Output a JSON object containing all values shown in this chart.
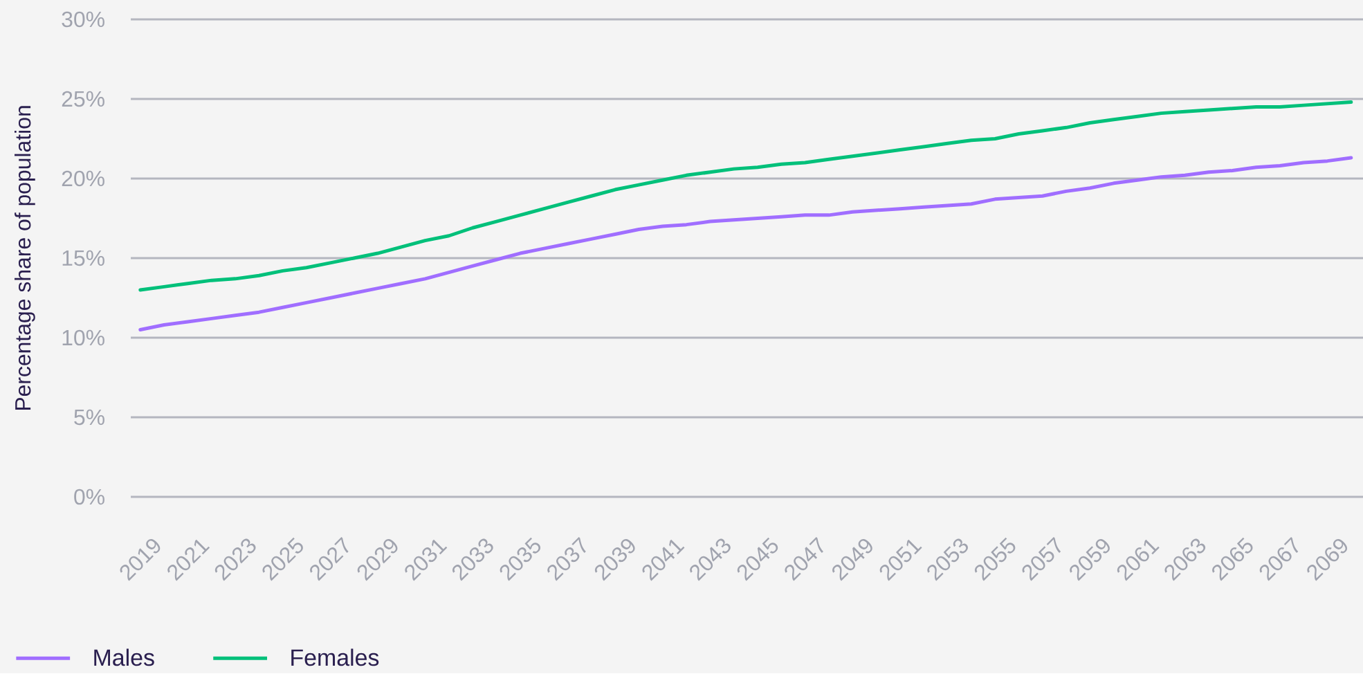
{
  "chart_data": {
    "type": "line",
    "ylabel": "Percentage share of population",
    "x": [
      2019,
      2020,
      2021,
      2022,
      2023,
      2024,
      2025,
      2026,
      2027,
      2028,
      2029,
      2030,
      2031,
      2032,
      2033,
      2034,
      2035,
      2036,
      2037,
      2038,
      2039,
      2040,
      2041,
      2042,
      2043,
      2044,
      2045,
      2046,
      2047,
      2048,
      2049,
      2050,
      2051,
      2052,
      2053,
      2054,
      2055,
      2056,
      2057,
      2058,
      2059,
      2060,
      2061,
      2062,
      2063,
      2064,
      2065,
      2066,
      2067,
      2068,
      2069,
      2070
    ],
    "series": [
      {
        "name": "Males",
        "color": "#a06eff",
        "values": [
          10.5,
          10.8,
          11.0,
          11.2,
          11.4,
          11.6,
          11.9,
          12.2,
          12.5,
          12.8,
          13.1,
          13.4,
          13.7,
          14.1,
          14.5,
          14.9,
          15.3,
          15.6,
          15.9,
          16.2,
          16.5,
          16.8,
          17.0,
          17.1,
          17.3,
          17.4,
          17.5,
          17.6,
          17.7,
          17.7,
          17.9,
          18.0,
          18.1,
          18.2,
          18.3,
          18.4,
          18.7,
          18.8,
          18.9,
          19.2,
          19.4,
          19.7,
          19.9,
          20.1,
          20.2,
          20.4,
          20.5,
          20.7,
          20.8,
          21.0,
          21.1,
          21.3
        ]
      },
      {
        "name": "Females",
        "color": "#00c07a",
        "values": [
          13.0,
          13.2,
          13.4,
          13.6,
          13.7,
          13.9,
          14.2,
          14.4,
          14.7,
          15.0,
          15.3,
          15.7,
          16.1,
          16.4,
          16.9,
          17.3,
          17.7,
          18.1,
          18.5,
          18.9,
          19.3,
          19.6,
          19.9,
          20.2,
          20.4,
          20.6,
          20.7,
          20.9,
          21.0,
          21.2,
          21.4,
          21.6,
          21.8,
          22.0,
          22.2,
          22.4,
          22.5,
          22.8,
          23.0,
          23.2,
          23.5,
          23.7,
          23.9,
          24.1,
          24.2,
          24.3,
          24.4,
          24.5,
          24.5,
          24.6,
          24.7,
          24.8
        ]
      }
    ],
    "xlim": [
      2018.6,
      2070.5
    ],
    "xticks": [
      2019,
      2021,
      2023,
      2025,
      2027,
      2029,
      2031,
      2033,
      2035,
      2037,
      2039,
      2041,
      2043,
      2045,
      2047,
      2049,
      2051,
      2053,
      2055,
      2057,
      2059,
      2061,
      2063,
      2065,
      2067,
      2069
    ],
    "ylim": [
      0,
      30
    ],
    "yticks": [
      {
        "value": 0,
        "label": "0%"
      },
      {
        "value": 5,
        "label": "5%"
      },
      {
        "value": 10,
        "label": "10%"
      },
      {
        "value": 15,
        "label": "15%"
      },
      {
        "value": 20,
        "label": "20%"
      },
      {
        "value": 25,
        "label": "25%"
      },
      {
        "value": 30,
        "label": "30%"
      }
    ],
    "grid": "y",
    "legend": "bottom left",
    "line_style": "solid"
  }
}
